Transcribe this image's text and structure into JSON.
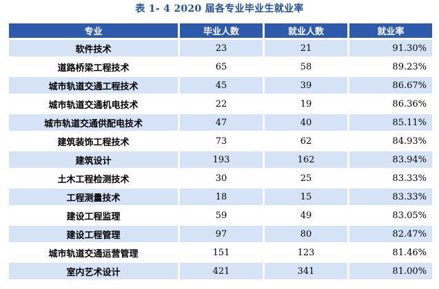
{
  "caption": "表 1- 4    2020 届各专业毕业生就业率",
  "headers": [
    "专业",
    "毕业人数",
    "就业人数",
    "就业率"
  ],
  "rows": [
    {
      "major": "软件技术",
      "graduates": "23",
      "employed": "21",
      "rate": "91.30%"
    },
    {
      "major": "道路桥梁工程技术",
      "graduates": "65",
      "employed": "58",
      "rate": "89.23%"
    },
    {
      "major": "城市轨道交通工程技术",
      "graduates": "45",
      "employed": "39",
      "rate": "86.67%"
    },
    {
      "major": "城市轨道交通机电技术",
      "graduates": "22",
      "employed": "19",
      "rate": "86.36%"
    },
    {
      "major": "城市轨道交通供配电技术",
      "graduates": "47",
      "employed": "40",
      "rate": "85.11%"
    },
    {
      "major": "建筑装饰工程技术",
      "graduates": "73",
      "employed": "62",
      "rate": "84.93%"
    },
    {
      "major": "建筑设计",
      "graduates": "193",
      "employed": "162",
      "rate": "83.94%"
    },
    {
      "major": "土木工程检测技术",
      "graduates": "30",
      "employed": "25",
      "rate": "83.33%"
    },
    {
      "major": "工程测量技术",
      "graduates": "18",
      "employed": "15",
      "rate": "83.33%"
    },
    {
      "major": "建设工程监理",
      "graduates": "59",
      "employed": "49",
      "rate": "83.05%"
    },
    {
      "major": "建设工程管理",
      "graduates": "97",
      "employed": "80",
      "rate": "82.47%"
    },
    {
      "major": "城市轨道交通运营管理",
      "graduates": "151",
      "employed": "123",
      "rate": "81.46%"
    },
    {
      "major": "室内艺术设计",
      "graduates": "421",
      "employed": "341",
      "rate": "81.00%"
    }
  ],
  "colors": {
    "header_bg": "#2e5aac",
    "stripe_bg": "#d6e3f7",
    "caption_text": "#1f4e9a"
  }
}
